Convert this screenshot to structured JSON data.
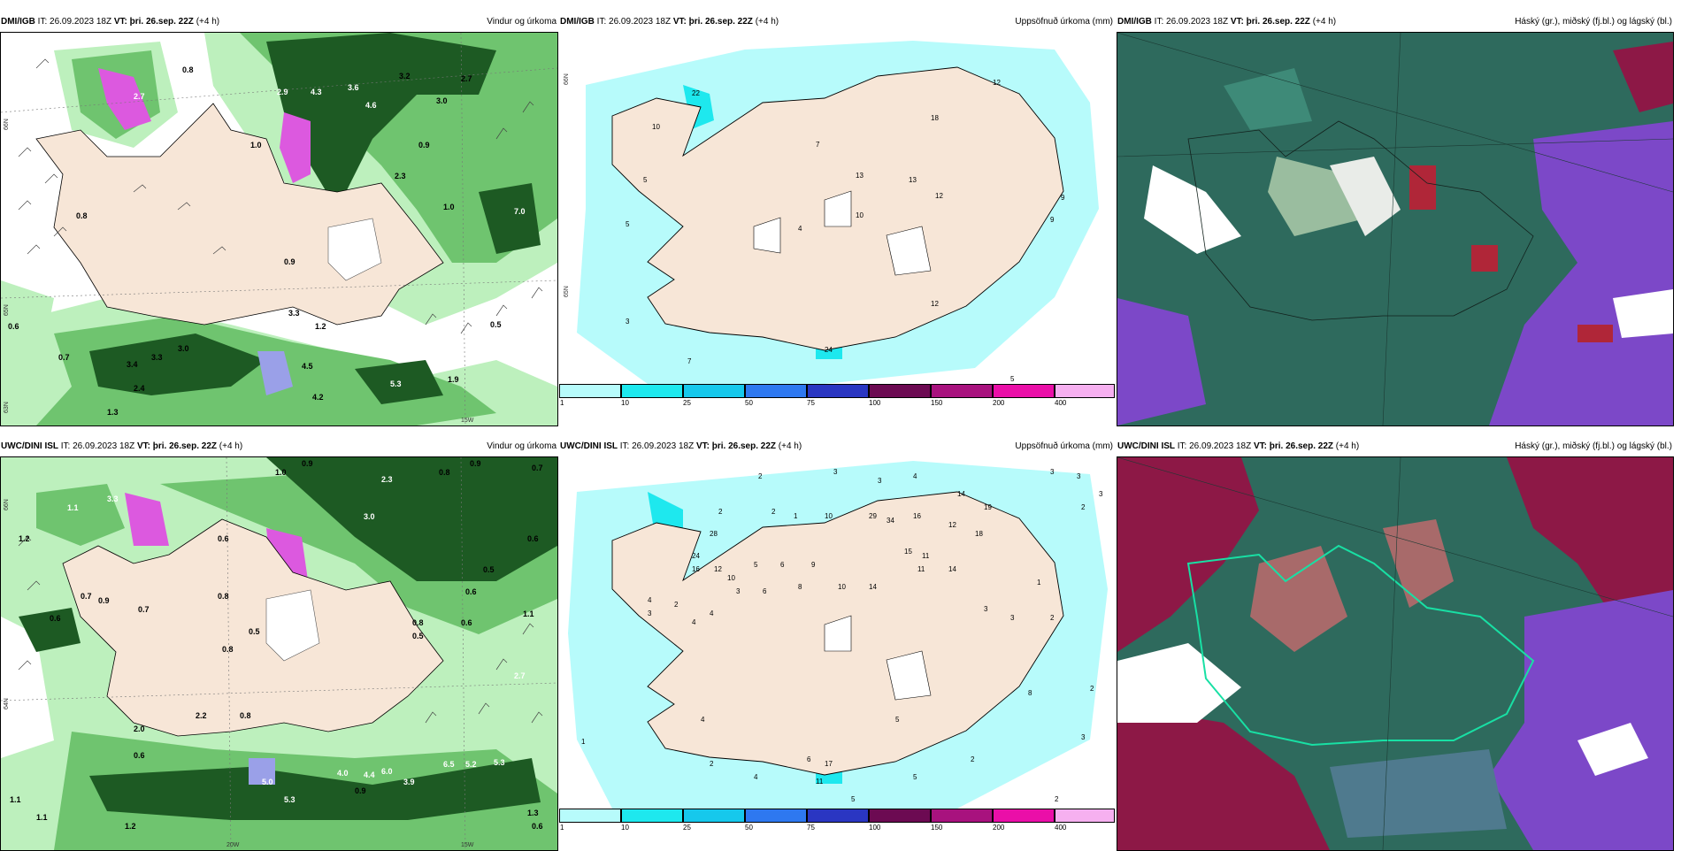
{
  "panels": [
    {
      "source": "DMI/IGB",
      "it_label": "IT:",
      "it": "26.09.2023 18Z",
      "vt_label": "VT:",
      "vt": "þri. 26.sep. 22Z",
      "lead": "(+4 h)",
      "title": "Vindur og úrkoma",
      "lat_labels": [
        "66N",
        "65N",
        "63N"
      ],
      "lon_labels": [
        "15W"
      ],
      "values": [
        "0.8",
        "2.7",
        "2.9",
        "4.3",
        "3.6",
        "3.2",
        "2.7",
        "4.6",
        "3.0",
        "1.0",
        "0.9",
        "2.3",
        "1.0",
        "7.0",
        "0.8",
        "0.9",
        "3.3",
        "1.2",
        "0.6",
        "0.7",
        "3.4",
        "3.3",
        "3.0",
        "4.5",
        "4.2",
        "5.3",
        "1.9",
        "0.5",
        "2.4",
        "1.3"
      ]
    },
    {
      "source": "DMI/IGB",
      "it_label": "IT:",
      "it": "26.09.2023 18Z",
      "vt_label": "VT:",
      "vt": "þri. 26.sep. 22Z",
      "lead": "(+4 h)",
      "title": "Uppsöfnuð úrkoma (mm)",
      "lat_labels": [
        "66N",
        "65N"
      ],
      "values": [
        "12",
        "22",
        "10",
        "7",
        "13",
        "18",
        "13",
        "12",
        "9",
        "9",
        "5",
        "5",
        "4",
        "10",
        "3",
        "7",
        "24",
        "7",
        "5",
        "12"
      ]
    },
    {
      "source": "DMI/IGB",
      "it_label": "IT:",
      "it": "26.09.2023 18Z",
      "vt_label": "VT:",
      "vt": "þri. 26.sep. 22Z",
      "lead": "(+4 h)",
      "title": "Háský (gr.), miðský (fj.bl.) og lágský (bl.)"
    },
    {
      "source": "UWC/DINI ISL",
      "it_label": "IT:",
      "it": "26.09.2023 18Z",
      "vt_label": "VT:",
      "vt": "þri. 26.sep. 22Z",
      "lead": "(+4 h)",
      "title": "Vindur og úrkoma",
      "lat_labels": [
        "66N",
        "64N"
      ],
      "lon_labels": [
        "20W",
        "15W"
      ],
      "values": [
        "1.0",
        "0.9",
        "0.8",
        "0.9",
        "0.7",
        "1.1",
        "3.3",
        "2.3",
        "0.6",
        "0.6",
        "1.2",
        "0.7",
        "0.8",
        "3.0",
        "0.7",
        "0.9",
        "0.5",
        "0.5",
        "0.6",
        "0.8",
        "0.5",
        "0.6",
        "0.8",
        "1.1",
        "0.6",
        "2.7",
        "2.2",
        "0.8",
        "2.0",
        "0.6",
        "4.0",
        "4.4",
        "6.0",
        "5.0",
        "5.3",
        "6.5",
        "5.2",
        "5.3",
        "1.1",
        "0.9",
        "1.3",
        "0.6",
        "1.1",
        "3.9",
        "1.2"
      ]
    },
    {
      "source": "UWC/DINI ISL",
      "it_label": "IT:",
      "it": "26.09.2023 18Z",
      "vt_label": "VT:",
      "vt": "þri. 26.sep. 22Z",
      "lead": "(+4 h)",
      "title": "Uppsöfnuð úrkoma (mm)",
      "values": [
        "2",
        "3",
        "3",
        "4",
        "3",
        "3",
        "3",
        "2",
        "2",
        "2",
        "1",
        "10",
        "29",
        "34",
        "16",
        "14",
        "19",
        "28",
        "12",
        "18",
        "15",
        "24",
        "16",
        "12",
        "11",
        "10",
        "5",
        "6",
        "9",
        "14",
        "3",
        "6",
        "8",
        "10",
        "14",
        "11",
        "4",
        "1",
        "3",
        "3",
        "2",
        "4",
        "2",
        "4",
        "17",
        "6",
        "11",
        "5",
        "8",
        "4",
        "3",
        "2",
        "1",
        "5",
        "2",
        "2",
        "3",
        "2",
        "5",
        "4"
      ]
    },
    {
      "source": "UWC/DINI ISL",
      "it_label": "IT:",
      "it": "26.09.2023 18Z",
      "vt_label": "VT:",
      "vt": "þri. 26.sep. 22Z",
      "lead": "(+4 h)",
      "title": "Háský (gr.), miðský (fj.bl.) og lágský (bl.)"
    }
  ],
  "colorbar": {
    "ticks": [
      "1",
      "10",
      "25",
      "50",
      "75",
      "100",
      "150",
      "200",
      "400"
    ],
    "colors": [
      "#b7fbfb",
      "#1ee8ee",
      "#16c8ec",
      "#2e78f0",
      "#2a36c2",
      "#6c0a52",
      "#a8127e",
      "#ea0fa8",
      "#f6b0f0"
    ]
  },
  "colors": {
    "land": "#f7e6d7",
    "precip_light": "#bdf0bd",
    "precip_mid": "#6fc46f",
    "precip_dark": "#1d5a23",
    "precip_heavy": "#dc59df",
    "acc_light": "#b7fbfb",
    "acc_mid": "#1ee8ee",
    "cloud_high": "#2e6a5d",
    "cloud_mid": "#7c48c8",
    "cloud_low": "#8d1846",
    "cloud_clear": "#ffffff"
  }
}
